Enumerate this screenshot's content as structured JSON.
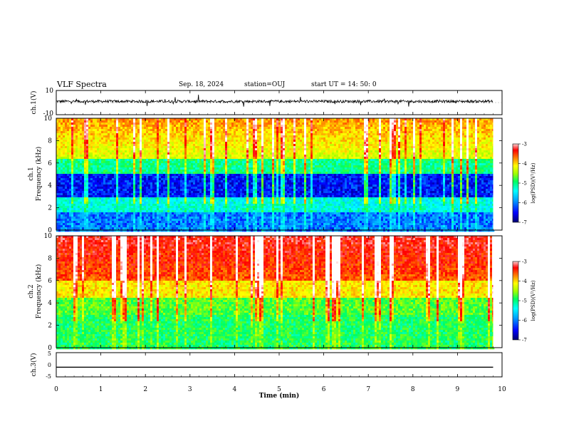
{
  "header": {
    "title": "VLF Spectra",
    "date": "Sep. 18, 2024",
    "station": "station=OUJ",
    "start": "start  UT =   14: 50: 0"
  },
  "colors": {
    "spectrogram_scale": [
      "#000070",
      "#0000ff",
      "#00a0ff",
      "#00ffff",
      "#00ff60",
      "#a0ff00",
      "#ffff00",
      "#ff8000",
      "#ff0000",
      "#ffffff"
    ]
  },
  "chart_data": [
    {
      "type": "line",
      "panel": "ch1-waveform",
      "ylabel": "ch.1(V)",
      "ylim": [
        -10,
        10
      ],
      "yticks": [
        "10",
        "-10"
      ],
      "xlim": [
        0,
        10
      ],
      "description_level": "noisy waveform centered near 1 V",
      "baseline": 1
    },
    {
      "type": "heatmap",
      "panel": "ch1-spectrogram",
      "ylabel": "ch.1\nFrequency (kHz)",
      "ylabel_lines": [
        "ch.1",
        "Frequency (kHz)"
      ],
      "ylim": [
        0,
        10
      ],
      "yticks": [
        "0",
        "2",
        "4",
        "6",
        "8",
        "10"
      ],
      "xlim": [
        0,
        10
      ],
      "colorbar": {
        "label": "log(PSD)(V²/Hz)",
        "range": [
          -7,
          -3
        ],
        "ticks": [
          "-3",
          "-4",
          "-5",
          "-6",
          "-7"
        ]
      }
    },
    {
      "type": "heatmap",
      "panel": "ch2-spectrogram",
      "ylabel": "ch.2\nFrequency (kHz)",
      "ylabel_lines": [
        "ch.2",
        "Frequency (kHz)"
      ],
      "ylim": [
        0,
        10
      ],
      "yticks": [
        "0",
        "2",
        "4",
        "6",
        "8",
        "10"
      ],
      "xlim": [
        0,
        10
      ],
      "colorbar": {
        "label": "log(PSD)(V²/Hz)",
        "range": [
          -7,
          -3
        ],
        "ticks": [
          "-3",
          "-4",
          "-5",
          "-6",
          "-7"
        ]
      }
    },
    {
      "type": "line",
      "panel": "ch3-waveform",
      "ylabel": "ch.3(V)",
      "ylim": [
        -5,
        5
      ],
      "yticks": [
        "5",
        "0",
        "-5"
      ],
      "xlim": [
        0,
        10
      ],
      "x": [
        0,
        9.8
      ],
      "values": [
        -1,
        -1
      ]
    }
  ],
  "xaxis": {
    "label": "Time (min)",
    "ticks": [
      "0",
      "1",
      "2",
      "3",
      "4",
      "5",
      "6",
      "7",
      "8",
      "9",
      "10"
    ]
  }
}
